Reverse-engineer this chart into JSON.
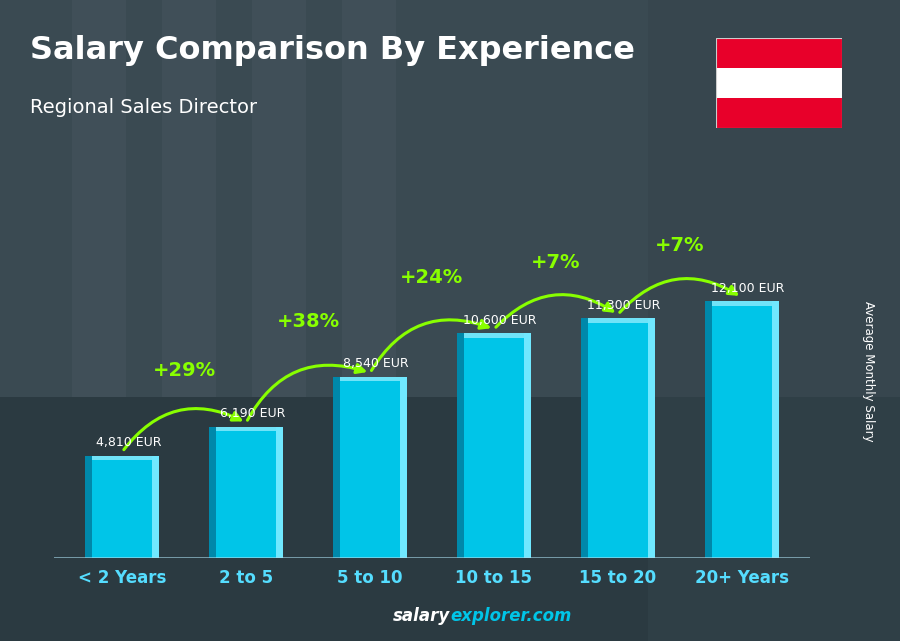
{
  "title": "Salary Comparison By Experience",
  "subtitle": "Regional Sales Director",
  "ylabel": "Average Monthly Salary",
  "watermark_left": "salary",
  "watermark_right": "explorer.com",
  "categories": [
    "< 2 Years",
    "2 to 5",
    "5 to 10",
    "10 to 15",
    "15 to 20",
    "20+ Years"
  ],
  "values": [
    4810,
    6190,
    8540,
    10600,
    11300,
    12100
  ],
  "value_labels": [
    "4,810 EUR",
    "6,190 EUR",
    "8,540 EUR",
    "10,600 EUR",
    "11,300 EUR",
    "12,100 EUR"
  ],
  "pct_changes": [
    "+29%",
    "+38%",
    "+24%",
    "+7%",
    "+7%"
  ],
  "bar_color_main": "#00C5E8",
  "bar_color_dark": "#0088AA",
  "bar_color_light": "#70E8FF",
  "bar_top_color": "#A0F0FF",
  "bg_color": "#3a4a55",
  "title_color": "#ffffff",
  "subtitle_color": "#ffffff",
  "label_color": "#ffffff",
  "pct_color": "#88ff00",
  "arrow_color": "#88ff00",
  "xlabel_color": "#55ddff",
  "flag_red": "#e8002a",
  "flag_white": "#ffffff",
  "figsize": [
    9.0,
    6.41
  ],
  "dpi": 100,
  "bar_width": 0.6
}
